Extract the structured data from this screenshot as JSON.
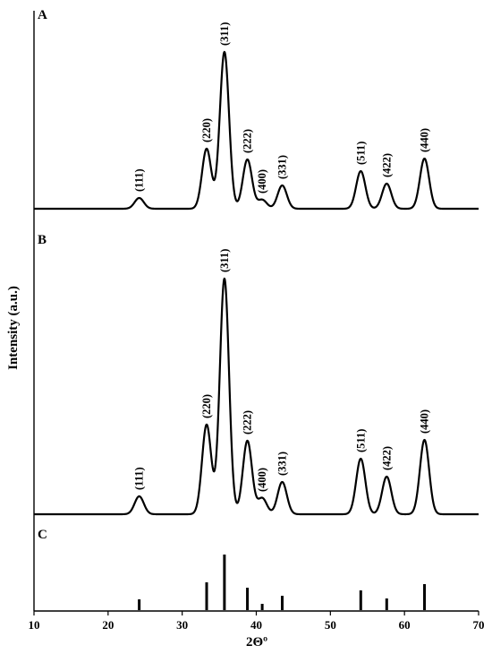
{
  "chart_data": {
    "type": "line",
    "xlabel": "2Θº",
    "ylabel": "Intensity (a.u.)",
    "xlim": [
      10,
      70
    ],
    "xticks": [
      10,
      20,
      30,
      40,
      50,
      60,
      70
    ],
    "grid": false,
    "panels": [
      {
        "label": "A",
        "baseline": 3,
        "peaks": [
          {
            "x": 24.2,
            "height": 12,
            "hkl": "(111)"
          },
          {
            "x": 33.3,
            "height": 67,
            "hkl": "(220)"
          },
          {
            "x": 35.7,
            "height": 175,
            "hkl": "(311)"
          },
          {
            "x": 38.8,
            "height": 55,
            "hkl": "(222)"
          },
          {
            "x": 40.8,
            "height": 10,
            "hkl": "(400)"
          },
          {
            "x": 43.5,
            "height": 26,
            "hkl": "(331)"
          },
          {
            "x": 54.1,
            "height": 42,
            "hkl": "(511)"
          },
          {
            "x": 57.6,
            "height": 28,
            "hkl": "(422)"
          },
          {
            "x": 62.7,
            "height": 56,
            "hkl": "(440)"
          }
        ]
      },
      {
        "label": "B",
        "baseline": 3,
        "peaks": [
          {
            "x": 24.2,
            "height": 20,
            "hkl": "(111)"
          },
          {
            "x": 33.3,
            "height": 100,
            "hkl": "(220)"
          },
          {
            "x": 35.7,
            "height": 263,
            "hkl": "(311)"
          },
          {
            "x": 38.8,
            "height": 82,
            "hkl": "(222)"
          },
          {
            "x": 40.8,
            "height": 18,
            "hkl": "(400)"
          },
          {
            "x": 43.5,
            "height": 36,
            "hkl": "(331)"
          },
          {
            "x": 54.1,
            "height": 62,
            "hkl": "(511)"
          },
          {
            "x": 57.6,
            "height": 42,
            "hkl": "(422)"
          },
          {
            "x": 62.7,
            "height": 83,
            "hkl": "(440)"
          }
        ]
      },
      {
        "label": "C",
        "type": "reference-bars",
        "bars": [
          {
            "x": 24.2,
            "height": 12
          },
          {
            "x": 33.3,
            "height": 31
          },
          {
            "x": 35.7,
            "height": 62
          },
          {
            "x": 38.8,
            "height": 25
          },
          {
            "x": 40.8,
            "height": 7
          },
          {
            "x": 43.5,
            "height": 16
          },
          {
            "x": 54.1,
            "height": 22
          },
          {
            "x": 57.6,
            "height": 13
          },
          {
            "x": 62.7,
            "height": 29
          }
        ]
      }
    ]
  }
}
